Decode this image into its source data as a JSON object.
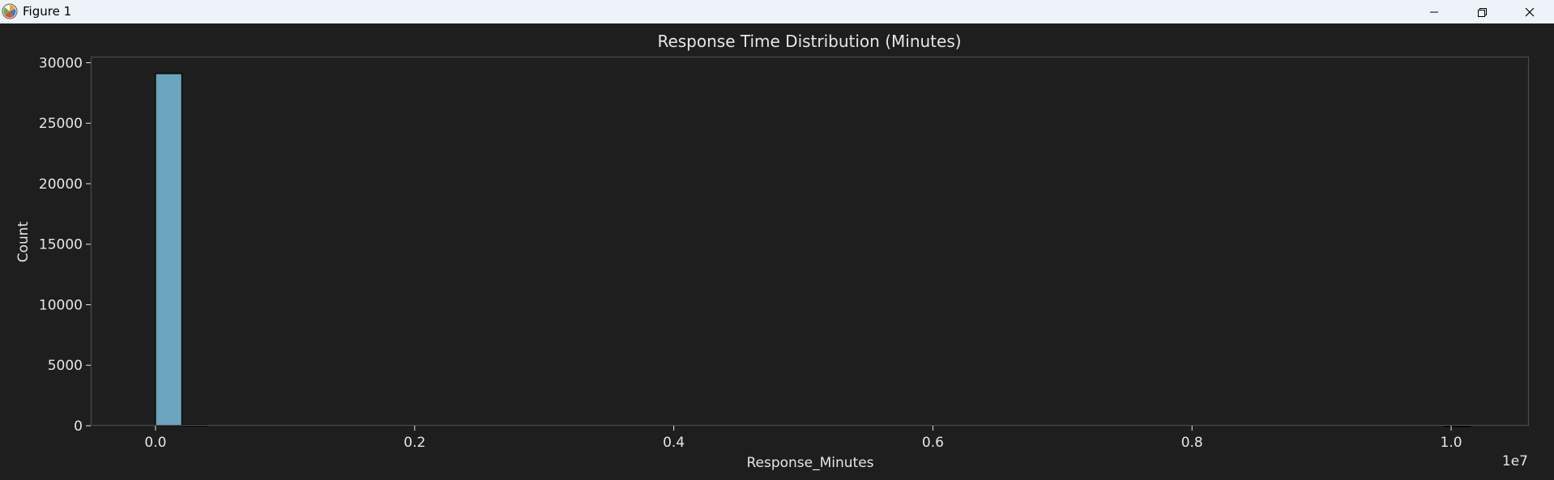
{
  "window": {
    "title": "Figure 1",
    "icon": "matplotlib-icon",
    "controls": [
      "minimize-icon",
      "restore-icon",
      "close-icon"
    ]
  },
  "colors": {
    "titlebar_bg": "#eef3f9",
    "figure_bg": "#1e1e1e",
    "axes_bg": "#1f1f1f",
    "spine": "#4a4a4a",
    "text": "#e6e6e6",
    "bar_fill": "#6aa4bd",
    "bar_edge": "#000000"
  },
  "chart_data": {
    "type": "bar",
    "title": "Response Time Distribution (Minutes)",
    "xlabel": "Response_Minutes",
    "ylabel": "Count",
    "x_offset_label": "1e7",
    "xlim": [
      -0.05,
      1.06
    ],
    "ylim": [
      0,
      30500
    ],
    "x_ticks": [
      0.0,
      0.2,
      0.4,
      0.6,
      0.8,
      1.0
    ],
    "x_tick_labels": [
      "0.0",
      "0.2",
      "0.4",
      "0.6",
      "0.8",
      "1.0"
    ],
    "y_ticks": [
      0,
      5000,
      10000,
      15000,
      20000,
      25000,
      30000
    ],
    "y_tick_labels": [
      "0",
      "5000",
      "10000",
      "15000",
      "20000",
      "25000",
      "30000"
    ],
    "bins": {
      "start": 0.0,
      "width": 0.0203,
      "counts": [
        29100,
        60,
        0,
        0,
        0,
        0,
        0,
        0,
        0,
        0,
        0,
        0,
        0,
        0,
        0,
        0,
        0,
        0,
        0,
        0,
        0,
        0,
        0,
        0,
        0,
        0,
        0,
        0,
        0,
        0,
        0,
        0,
        0,
        0,
        0,
        0,
        0,
        0,
        0,
        0,
        0,
        0,
        0,
        0,
        0,
        0,
        0,
        0,
        0,
        3
      ]
    },
    "grid": false,
    "legend": "none"
  }
}
